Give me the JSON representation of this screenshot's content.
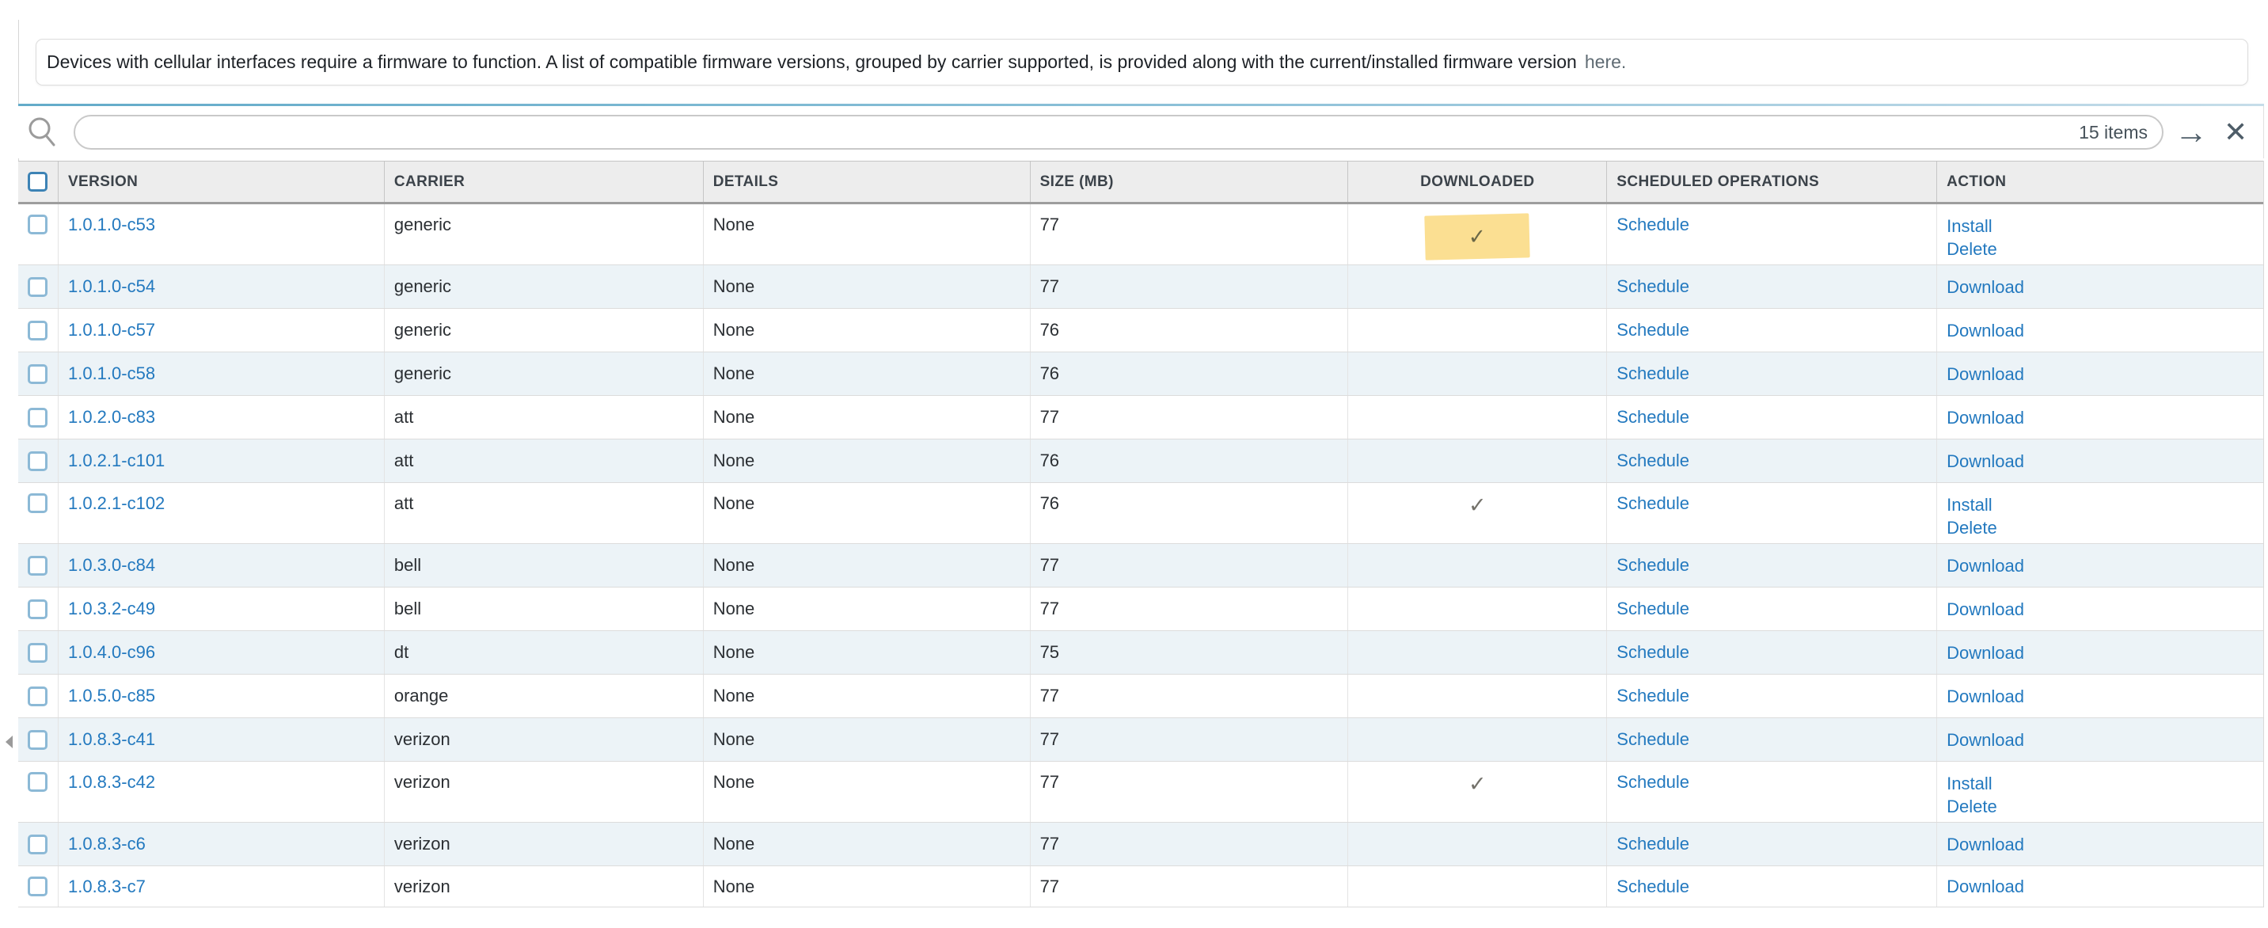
{
  "notice": {
    "text": "Devices with cellular interfaces require a firmware to function. A list of compatible firmware versions, grouped by carrier supported, is provided along with the current/installed firmware version",
    "link_label": "here."
  },
  "search": {
    "count_label": "15 items",
    "icons": {
      "search": "magnifier-icon",
      "submit": "arrow-right-icon",
      "clear": "close-icon"
    }
  },
  "glyphs": {
    "check": "✓",
    "arrow_right": "→",
    "close": "✕"
  },
  "colors": {
    "link_blue": "#2379bf",
    "row_alt_blue": "#ecf3f7",
    "header_gray": "#ededed",
    "highlight_yellow": "#fbdf92",
    "checkbox_blue": "#8cb9d6",
    "topline_teal": "#63abc9"
  },
  "table": {
    "columns": [
      "VERSION",
      "CARRIER",
      "DETAILS",
      "SIZE (MB)",
      "DOWNLOADED",
      "SCHEDULED OPERATIONS",
      "ACTION"
    ],
    "rows": [
      {
        "version": "1.0.1.0-c53",
        "carrier": "generic",
        "details": "None",
        "size": "77",
        "downloaded": true,
        "highlighted": true,
        "scheduled": "Schedule",
        "actions": [
          "Install",
          "Delete"
        ]
      },
      {
        "version": "1.0.1.0-c54",
        "carrier": "generic",
        "details": "None",
        "size": "77",
        "downloaded": false,
        "highlighted": false,
        "scheduled": "Schedule",
        "actions": [
          "Download"
        ]
      },
      {
        "version": "1.0.1.0-c57",
        "carrier": "generic",
        "details": "None",
        "size": "76",
        "downloaded": false,
        "highlighted": false,
        "scheduled": "Schedule",
        "actions": [
          "Download"
        ]
      },
      {
        "version": "1.0.1.0-c58",
        "carrier": "generic",
        "details": "None",
        "size": "76",
        "downloaded": false,
        "highlighted": false,
        "scheduled": "Schedule",
        "actions": [
          "Download"
        ]
      },
      {
        "version": "1.0.2.0-c83",
        "carrier": "att",
        "details": "None",
        "size": "77",
        "downloaded": false,
        "highlighted": false,
        "scheduled": "Schedule",
        "actions": [
          "Download"
        ]
      },
      {
        "version": "1.0.2.1-c101",
        "carrier": "att",
        "details": "None",
        "size": "76",
        "downloaded": false,
        "highlighted": false,
        "scheduled": "Schedule",
        "actions": [
          "Download"
        ]
      },
      {
        "version": "1.0.2.1-c102",
        "carrier": "att",
        "details": "None",
        "size": "76",
        "downloaded": true,
        "highlighted": false,
        "scheduled": "Schedule",
        "actions": [
          "Install",
          "Delete"
        ]
      },
      {
        "version": "1.0.3.0-c84",
        "carrier": "bell",
        "details": "None",
        "size": "77",
        "downloaded": false,
        "highlighted": false,
        "scheduled": "Schedule",
        "actions": [
          "Download"
        ]
      },
      {
        "version": "1.0.3.2-c49",
        "carrier": "bell",
        "details": "None",
        "size": "77",
        "downloaded": false,
        "highlighted": false,
        "scheduled": "Schedule",
        "actions": [
          "Download"
        ]
      },
      {
        "version": "1.0.4.0-c96",
        "carrier": "dt",
        "details": "None",
        "size": "75",
        "downloaded": false,
        "highlighted": false,
        "scheduled": "Schedule",
        "actions": [
          "Download"
        ]
      },
      {
        "version": "1.0.5.0-c85",
        "carrier": "orange",
        "details": "None",
        "size": "77",
        "downloaded": false,
        "highlighted": false,
        "scheduled": "Schedule",
        "actions": [
          "Download"
        ]
      },
      {
        "version": "1.0.8.3-c41",
        "carrier": "verizon",
        "details": "None",
        "size": "77",
        "downloaded": false,
        "highlighted": false,
        "scheduled": "Schedule",
        "actions": [
          "Download"
        ]
      },
      {
        "version": "1.0.8.3-c42",
        "carrier": "verizon",
        "details": "None",
        "size": "77",
        "downloaded": true,
        "highlighted": false,
        "scheduled": "Schedule",
        "actions": [
          "Install",
          "Delete"
        ]
      },
      {
        "version": "1.0.8.3-c6",
        "carrier": "verizon",
        "details": "None",
        "size": "77",
        "downloaded": false,
        "highlighted": false,
        "scheduled": "Schedule",
        "actions": [
          "Download"
        ]
      },
      {
        "version": "1.0.8.3-c7",
        "carrier": "verizon",
        "details": "None",
        "size": "77",
        "downloaded": false,
        "highlighted": false,
        "scheduled": "Schedule",
        "actions": [
          "Download"
        ]
      }
    ]
  }
}
